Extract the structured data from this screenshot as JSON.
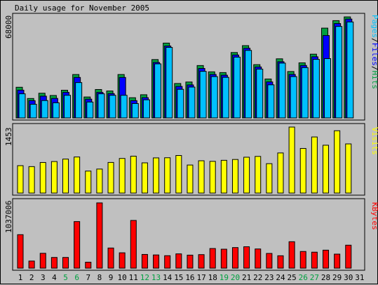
{
  "chart_data": [
    {
      "type": "bar",
      "title": "Daily usage for November 2005",
      "ylabel_parts": [
        {
          "text": "Pages",
          "color": "#00c0ff"
        },
        {
          "text": "/",
          "color": "#000000"
        },
        {
          "text": "Files",
          "color": "#0000ff"
        },
        {
          "text": "/",
          "color": "#000000"
        },
        {
          "text": "Hits",
          "color": "#00a040"
        }
      ],
      "ymax_label": "68000",
      "ylim": [
        0,
        68000
      ],
      "categories": [
        "1",
        "2",
        "3",
        "4",
        "5",
        "6",
        "7",
        "8",
        "9",
        "10",
        "11",
        "12",
        "13",
        "14",
        "15",
        "16",
        "17",
        "18",
        "19",
        "20",
        "21",
        "22",
        "23",
        "24",
        "25",
        "26",
        "27",
        "28",
        "29",
        "30",
        "31"
      ],
      "series": [
        {
          "name": "Hits",
          "color": "#00a040",
          "values": [
            20500,
            13000,
            16500,
            15000,
            18500,
            29000,
            14000,
            19000,
            18000,
            29000,
            13500,
            15500,
            39000,
            50000,
            23000,
            24000,
            35000,
            30800,
            30300,
            43700,
            48300,
            35600,
            26000,
            39500,
            31000,
            36800,
            42600,
            60000,
            65000,
            67500,
            null
          ]
        },
        {
          "name": "Files",
          "color": "#0000ff",
          "values": [
            19500,
            12500,
            15500,
            14000,
            18000,
            28000,
            13500,
            18000,
            17200,
            28000,
            12500,
            14500,
            38000,
            49000,
            22000,
            23000,
            34000,
            30000,
            29500,
            43000,
            47500,
            35000,
            25000,
            38500,
            30000,
            36000,
            41800,
            56000,
            64000,
            67000,
            null
          ]
        },
        {
          "name": "Pages",
          "color": "#00c0ff",
          "values": [
            18000,
            11000,
            13500,
            12000,
            17000,
            25500,
            12500,
            18000,
            17000,
            17000,
            11500,
            14000,
            38000,
            49000,
            21000,
            22500,
            33000,
            29500,
            29000,
            42500,
            47000,
            34500,
            24000,
            38500,
            29500,
            35500,
            41000,
            41500,
            63000,
            66000,
            null
          ]
        }
      ]
    },
    {
      "type": "bar",
      "ylabel": "Visits",
      "ylabel_color": "#ffff00",
      "ymax_label": "1453",
      "ylim": [
        0,
        1453
      ],
      "categories": [
        "1",
        "2",
        "3",
        "4",
        "5",
        "6",
        "7",
        "8",
        "9",
        "10",
        "11",
        "12",
        "13",
        "14",
        "15",
        "16",
        "17",
        "18",
        "19",
        "20",
        "21",
        "22",
        "23",
        "24",
        "25",
        "26",
        "27",
        "28",
        "29",
        "30",
        "31"
      ],
      "series": [
        {
          "name": "Visits",
          "color": "#ffff00",
          "values": [
            603,
            582,
            673,
            694,
            748,
            794,
            484,
            528,
            674,
            762,
            812,
            665,
            774,
            777,
            827,
            617,
            711,
            698,
            721,
            739,
            789,
            807,
            647,
            883,
            1453,
            982,
            1235,
            1053,
            1372,
            1082,
            null
          ]
        }
      ]
    },
    {
      "type": "bar",
      "ylabel": "KBytes",
      "ylabel_color": "#ff0000",
      "ymax_label": "1037006",
      "ylim": [
        0,
        1037006
      ],
      "categories": [
        "1",
        "2",
        "3",
        "4",
        "5",
        "6",
        "7",
        "8",
        "9",
        "10",
        "11",
        "12",
        "13",
        "14",
        "15",
        "16",
        "17",
        "18",
        "19",
        "20",
        "21",
        "22",
        "23",
        "24",
        "25",
        "26",
        "27",
        "28",
        "29",
        "30",
        "31"
      ],
      "series": [
        {
          "name": "KBytes",
          "color": "#ff0000",
          "values": [
            532000,
            113000,
            236000,
            170000,
            170000,
            740000,
            95000,
            1037006,
            320000,
            244000,
            758000,
            218000,
            210000,
            198000,
            227000,
            207000,
            215000,
            312000,
            301000,
            327000,
            340000,
            305000,
            234000,
            197000,
            420000,
            265000,
            254000,
            286000,
            223000,
            365000,
            null
          ]
        }
      ]
    }
  ],
  "x_axis": {
    "days": [
      "1",
      "2",
      "3",
      "4",
      "5",
      "6",
      "7",
      "8",
      "9",
      "10",
      "11",
      "12",
      "13",
      "14",
      "15",
      "16",
      "17",
      "18",
      "19",
      "20",
      "21",
      "22",
      "23",
      "24",
      "25",
      "26",
      "27",
      "28",
      "29",
      "30",
      "31"
    ],
    "day_colors": [
      "#000000",
      "#000000",
      "#000000",
      "#000000",
      "#00a040",
      "#00a040",
      "#000000",
      "#000000",
      "#000000",
      "#000000",
      "#000000",
      "#00a040",
      "#00a040",
      "#000000",
      "#000000",
      "#000000",
      "#000000",
      "#000000",
      "#00a040",
      "#00a040",
      "#000000",
      "#000000",
      "#000000",
      "#000000",
      "#000000",
      "#00a040",
      "#00a040",
      "#000000",
      "#000000",
      "#000000",
      "#000000"
    ]
  }
}
